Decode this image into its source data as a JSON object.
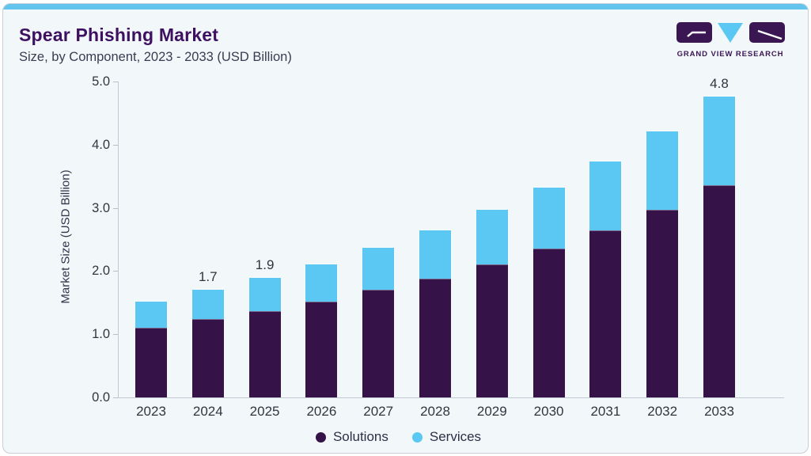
{
  "header": {
    "title": "Spear Phishing Market",
    "subtitle": "Size, by Component, 2023 - 2033 (USD Billion)"
  },
  "logo": {
    "wordmark": "GRAND VIEW RESEARCH"
  },
  "legend": {
    "items": [
      {
        "label": "Solutions",
        "color": "#351349"
      },
      {
        "label": "Services",
        "color": "#5bc7f3"
      }
    ]
  },
  "chart_data": {
    "type": "bar",
    "stacked": true,
    "title": "Spear Phishing Market Size, by Component, 2023 - 2033 (USD Billion)",
    "categories": [
      "2023",
      "2024",
      "2025",
      "2026",
      "2027",
      "2028",
      "2029",
      "2030",
      "2031",
      "2032",
      "2033"
    ],
    "series": [
      {
        "name": "Solutions",
        "color": "#351349",
        "values": [
          1.1,
          1.24,
          1.37,
          1.52,
          1.7,
          1.88,
          2.1,
          2.36,
          2.64,
          2.97,
          3.36
        ]
      },
      {
        "name": "Services",
        "color": "#5bc7f3",
        "values": [
          0.42,
          0.46,
          0.52,
          0.58,
          0.67,
          0.76,
          0.87,
          0.96,
          1.09,
          1.24,
          1.4
        ]
      }
    ],
    "totals": [
      1.52,
      1.7,
      1.89,
      2.1,
      2.37,
      2.64,
      2.97,
      3.32,
      3.73,
      4.21,
      4.76
    ],
    "total_labels": {
      "2024": "1.7",
      "2025": "1.9",
      "2033": "4.8"
    },
    "xlabel": "",
    "ylabel": "Market Size (USD Billion)",
    "ylim": [
      0,
      5
    ],
    "yticks": [
      "0.0",
      "1.0",
      "2.0",
      "3.0",
      "4.0",
      "5.0"
    ],
    "grid": false,
    "legend_position": "bottom"
  }
}
